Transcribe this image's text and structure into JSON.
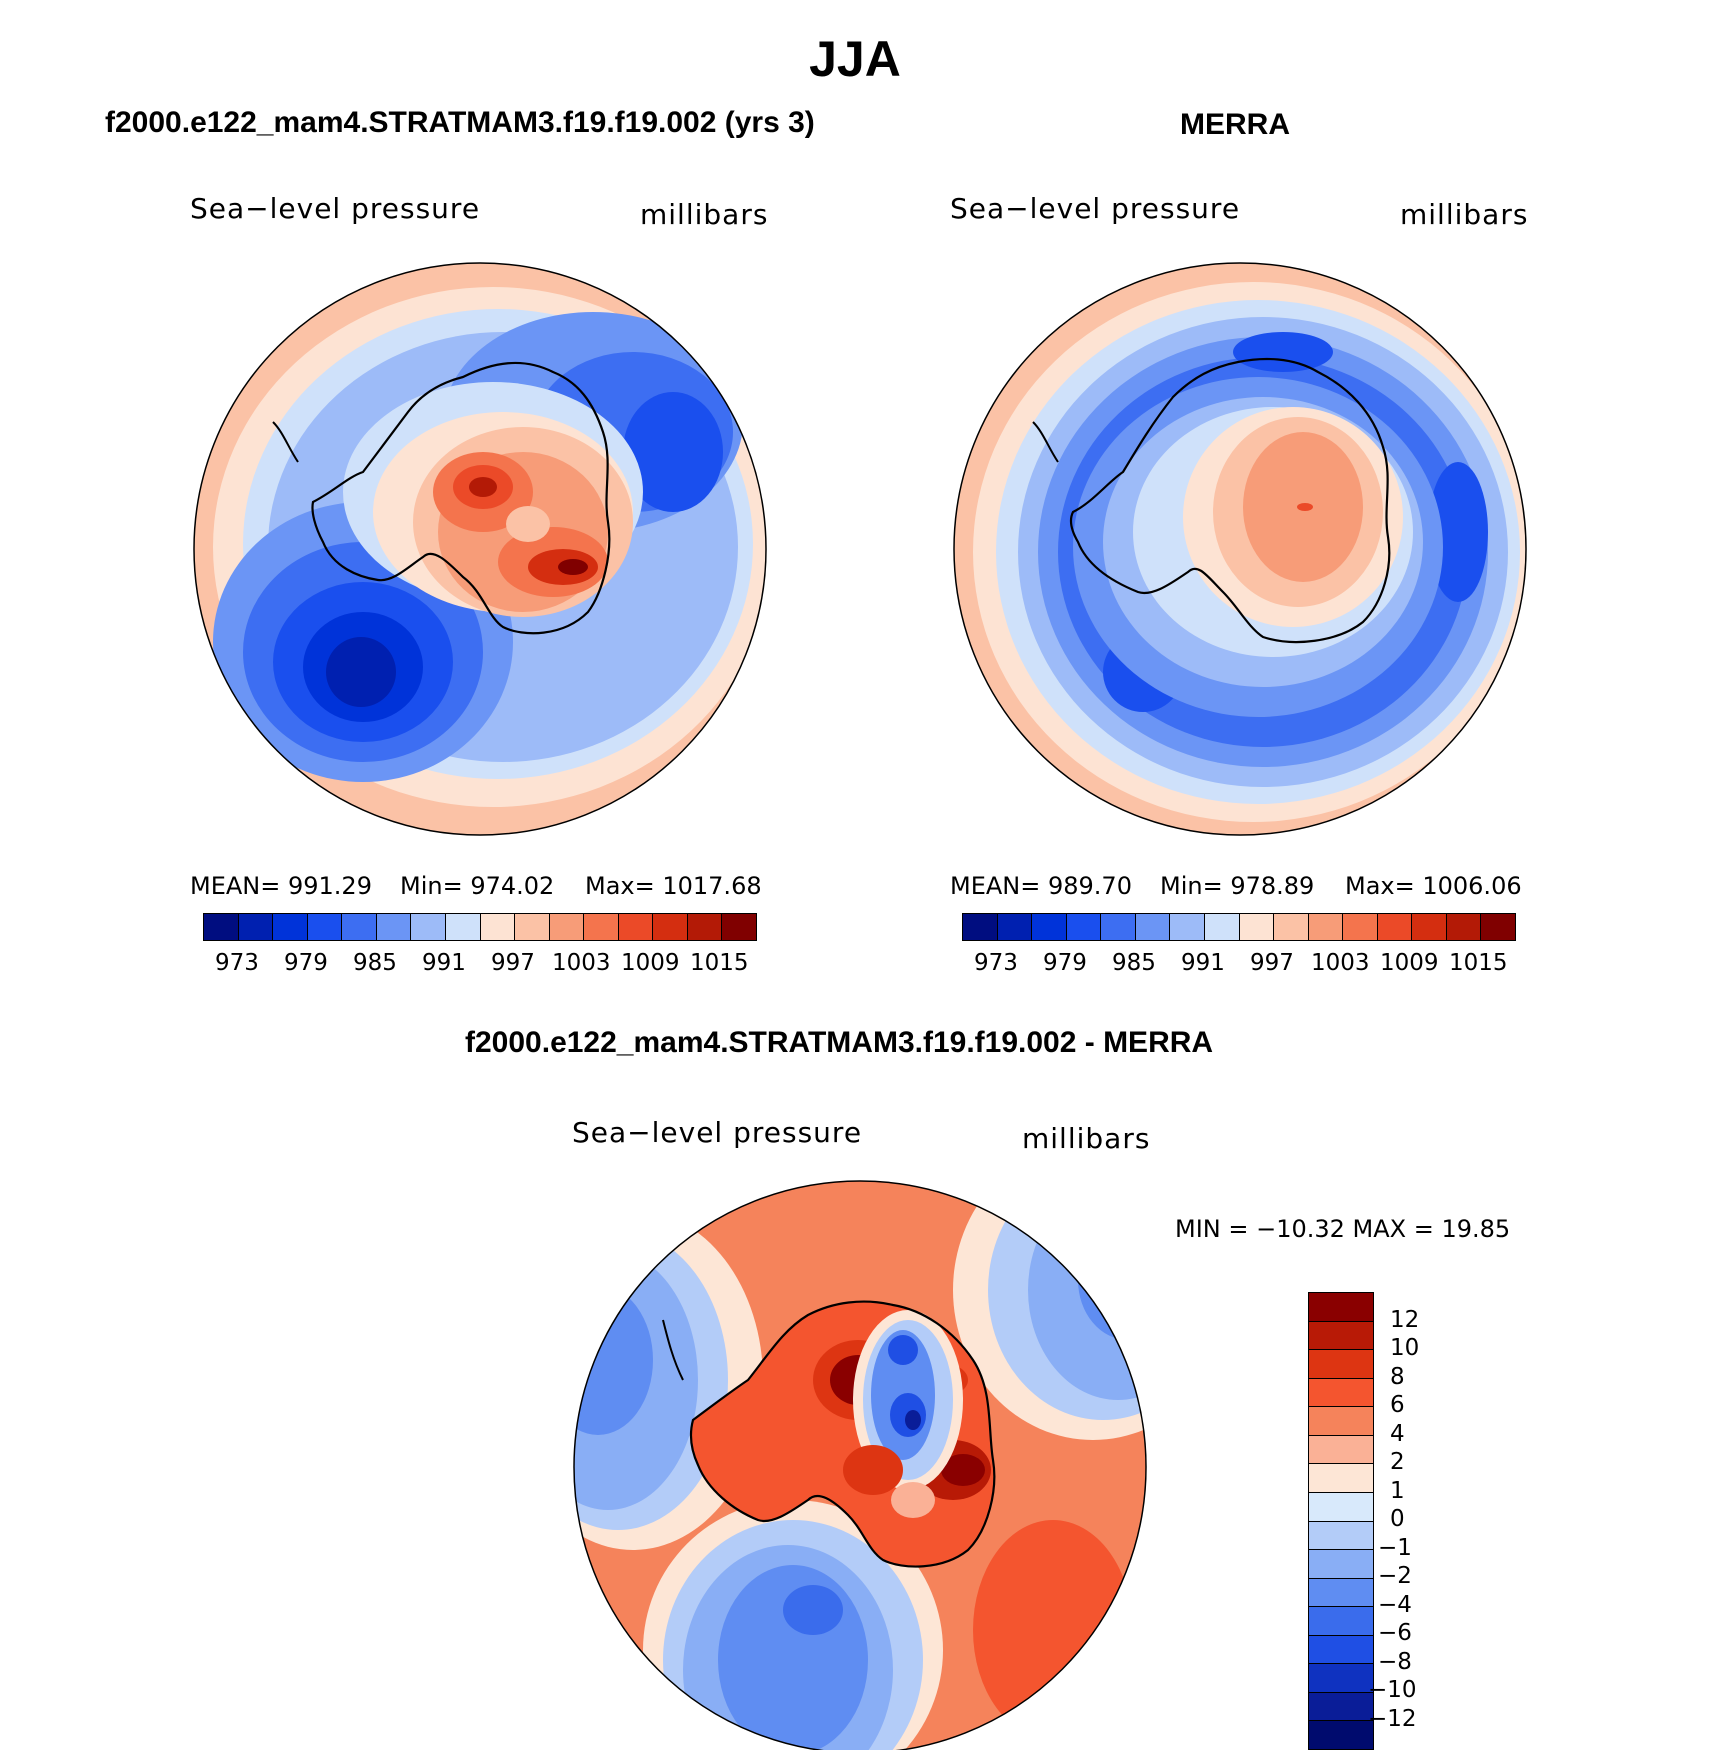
{
  "main_title": "JJA",
  "panels": [
    {
      "title": "f2000.e122_mam4.STRATMAM3.f19.f19.002 (yrs 3)",
      "field_label": "Sea−level pressure",
      "units_label": "millibars",
      "mean_text": "MEAN=  991.29",
      "min_text": "Min=  974.02",
      "max_text": "Max=  1017.68"
    },
    {
      "title": "MERRA",
      "field_label": "Sea−level pressure",
      "units_label": "millibars",
      "mean_text": "MEAN=  989.70",
      "min_text": "Min=  978.89",
      "max_text": "Max=  1006.06"
    },
    {
      "title": "f2000.e122_mam4.STRATMAM3.f19.f19.002 - MERRA",
      "field_label": "Sea−level pressure",
      "units_label": "millibars",
      "minmax_text": "MIN  =  −10.32  MAX  =    19.85"
    }
  ],
  "abs_colorbar": {
    "colors": [
      "#000d80",
      "#0020b0",
      "#0033d9",
      "#1a4fee",
      "#3d6ef2",
      "#6b95f5",
      "#9dbbf8",
      "#cfe1fa",
      "#fde3d3",
      "#fbc2a6",
      "#f79c78",
      "#f4744d",
      "#eb4a28",
      "#d42e10",
      "#b31a06",
      "#800000"
    ],
    "tick_labels": [
      "973",
      "979",
      "985",
      "991",
      "997",
      "1003",
      "1009",
      "1015"
    ]
  },
  "diff_colorbar": {
    "colors": [
      "#8a0000",
      "#b81a06",
      "#dd3512",
      "#f4552f",
      "#f5835b",
      "#fab196",
      "#fde6d6",
      "#d8e9fb",
      "#b3ccf8",
      "#89aef5",
      "#5f8df2",
      "#3a6cec",
      "#1f4fe4",
      "#0f32c0",
      "#0a1d98",
      "#000b6e"
    ],
    "tick_labels": [
      "12",
      "10",
      "8",
      "6",
      "4",
      "2",
      "1",
      "0",
      "−1",
      "−2",
      "−4",
      "−6",
      "−8",
      "−10",
      "−12"
    ]
  }
}
